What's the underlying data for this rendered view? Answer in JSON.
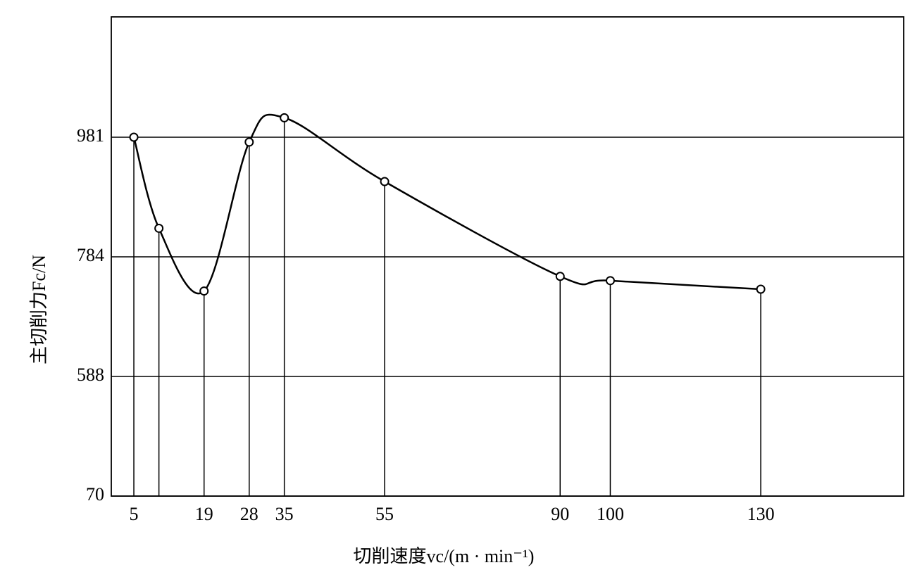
{
  "chart_data": {
    "type": "line",
    "xlabel": "切削速度vc/(m · min⁻¹)",
    "ylabel": "主切削力Fc/N",
    "x": [
      5,
      10,
      19,
      28,
      35,
      55,
      90,
      100,
      130
    ],
    "series": [
      {
        "color": "#000000",
        "values": [
          981,
          831,
          728,
          973,
          1013,
          908,
          752,
          745,
          731
        ]
      }
    ],
    "xlim": [
      0.5,
      158.5
    ],
    "xticks": [
      5,
      19,
      28,
      35,
      55,
      90,
      100,
      130
    ],
    "ylim": [
      70,
      1179
    ],
    "yticks": [
      70,
      588,
      784,
      981
    ],
    "y_scale": "tick-spaced",
    "grid": true
  }
}
